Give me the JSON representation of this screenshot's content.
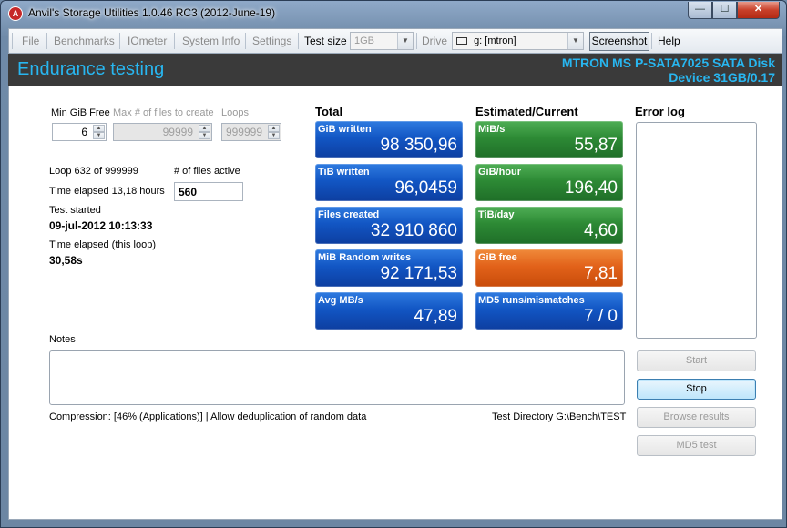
{
  "window": {
    "title": "Anvil's Storage Utilities 1.0.46 RC3 (2012-June-19)",
    "app_icon": "anvil-icon",
    "controls": {
      "minimize": "—",
      "maximize": "☐",
      "close": "✕"
    }
  },
  "toolbar": {
    "file": "File",
    "benchmarks": "Benchmarks",
    "iometer": "IOmeter",
    "system_info": "System Info",
    "settings": "Settings",
    "test_size_label": "Test size",
    "test_size_value": "1GB",
    "drive_label": "Drive",
    "drive_value": "g: [mtron]",
    "screenshot": "Screenshot",
    "help": "Help"
  },
  "header": {
    "title": "Endurance testing",
    "device_line1": "MTRON MS P-SATA7025 SATA Disk",
    "device_line2": "Device 31GB/0.17"
  },
  "params": {
    "min_gib_free_label": "Min GiB Free",
    "min_gib_free_value": "6",
    "max_files_label": "Max # of files to create",
    "max_files_value": "99999",
    "loops_label": "Loops",
    "loops_value": "999999"
  },
  "status": {
    "loop": "Loop 632 of 999999",
    "files_active_label": "# of files active",
    "files_active_value": "560",
    "time_elapsed": "Time elapsed 13,18 hours",
    "test_started_label": "Test started",
    "test_started_value": "09-jul-2012 10:13:33",
    "loop_elapsed_label": "Time elapsed (this loop)",
    "loop_elapsed_value": "30,58s"
  },
  "total": {
    "heading": "Total",
    "tiles": [
      {
        "label": "GiB written",
        "value": "98 350,96"
      },
      {
        "label": "TiB written",
        "value": "96,0459"
      },
      {
        "label": "Files created",
        "value": "32 910 860"
      },
      {
        "label": "MiB Random writes",
        "value": "92 171,53"
      },
      {
        "label": "Avg MB/s",
        "value": "47,89"
      }
    ]
  },
  "estimated": {
    "heading": "Estimated/Current",
    "tiles": [
      {
        "label": "MiB/s",
        "value": "55,87"
      },
      {
        "label": "GiB/hour",
        "value": "196,40"
      },
      {
        "label": "TiB/day",
        "value": "4,60"
      },
      {
        "label": "GiB free",
        "value": "7,81"
      },
      {
        "label": "MD5 runs/mismatches",
        "value": "7 / 0"
      }
    ]
  },
  "error_log": {
    "heading": "Error log"
  },
  "notes": {
    "label": "Notes"
  },
  "footer": {
    "compression": "Compression: [46% (Applications)] | Allow deduplication of random data",
    "test_directory": "Test Directory G:\\Bench\\TEST"
  },
  "buttons": {
    "start": "Start",
    "stop": "Stop",
    "browse": "Browse results",
    "md5": "MD5 test"
  },
  "colors": {
    "accent": "#28b6f0",
    "tile_blue": "#1256c4",
    "tile_green": "#2d8a35",
    "tile_orange": "#e2621a"
  }
}
